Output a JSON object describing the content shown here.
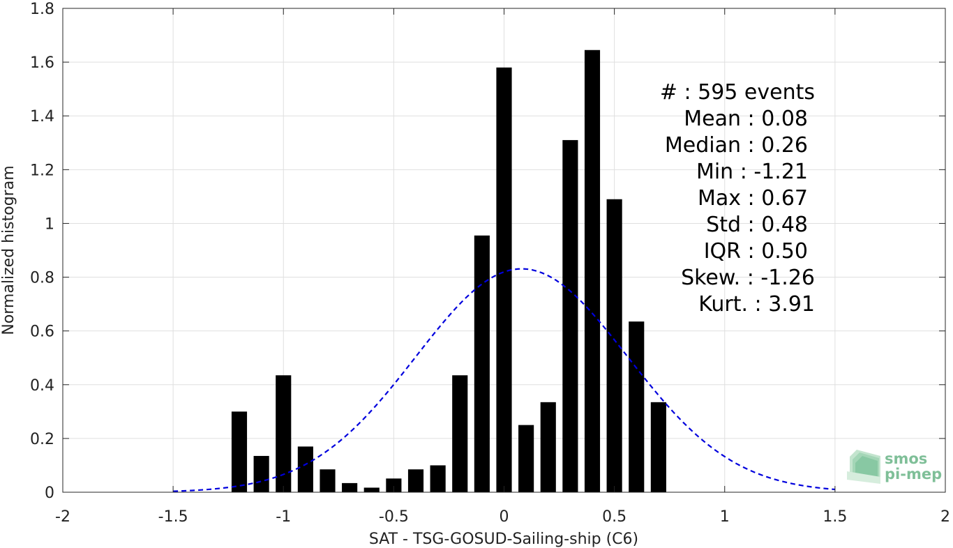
{
  "chart_data": {
    "type": "bar",
    "xlabel": "SAT - TSG-GOSUD-Sailing-ship (C6)",
    "ylabel": "Normalized histogram",
    "xlim": [
      -2,
      2
    ],
    "ylim": [
      0,
      1.8
    ],
    "xticks": [
      -2,
      -1.5,
      -1,
      -0.5,
      0,
      0.5,
      1,
      1.5,
      2
    ],
    "xtick_labels": [
      "-2",
      "-1.5",
      "-1",
      "-0.5",
      "0",
      "0.5",
      "1",
      "1.5",
      "2"
    ],
    "yticks": [
      0,
      0.2,
      0.4,
      0.6,
      0.8,
      1,
      1.2,
      1.4,
      1.6,
      1.8
    ],
    "ytick_labels": [
      "0",
      "0.2",
      "0.4",
      "0.6",
      "0.8",
      "1",
      "1.2",
      "1.4",
      "1.6",
      "1.8"
    ],
    "grid": true,
    "bar_width": 0.07,
    "bar_color": "#000000",
    "bins": [
      {
        "x": -1.2,
        "y": 0.3
      },
      {
        "x": -1.1,
        "y": 0.135
      },
      {
        "x": -1.0,
        "y": 0.435
      },
      {
        "x": -0.9,
        "y": 0.17
      },
      {
        "x": -0.8,
        "y": 0.085
      },
      {
        "x": -0.7,
        "y": 0.034
      },
      {
        "x": -0.6,
        "y": 0.017
      },
      {
        "x": -0.5,
        "y": 0.051
      },
      {
        "x": -0.4,
        "y": 0.085
      },
      {
        "x": -0.3,
        "y": 0.1
      },
      {
        "x": -0.2,
        "y": 0.435
      },
      {
        "x": -0.1,
        "y": 0.955
      },
      {
        "x": 0.0,
        "y": 1.58
      },
      {
        "x": 0.1,
        "y": 0.25
      },
      {
        "x": 0.2,
        "y": 0.335
      },
      {
        "x": 0.3,
        "y": 1.31
      },
      {
        "x": 0.4,
        "y": 1.645
      },
      {
        "x": 0.5,
        "y": 1.09
      },
      {
        "x": 0.6,
        "y": 0.635
      },
      {
        "x": 0.7,
        "y": 0.335
      }
    ],
    "fit_curve": {
      "style": "dashed",
      "color": "#0000dd",
      "mean": 0.08,
      "std": 0.48,
      "x_range": [
        -1.5,
        1.5
      ]
    },
    "annotation_lines": [
      "#  : 595 events",
      "Mean : 0.08",
      "Median : 0.26",
      "Min : -1.21",
      "Max : 0.67",
      "Std : 0.48",
      "IQR : 0.50",
      "Skew. : -1.26",
      "Kurt. : 3.91"
    ]
  },
  "logo": {
    "line1": "smos",
    "line2": "pi-mep",
    "color": "#7fbf98"
  }
}
